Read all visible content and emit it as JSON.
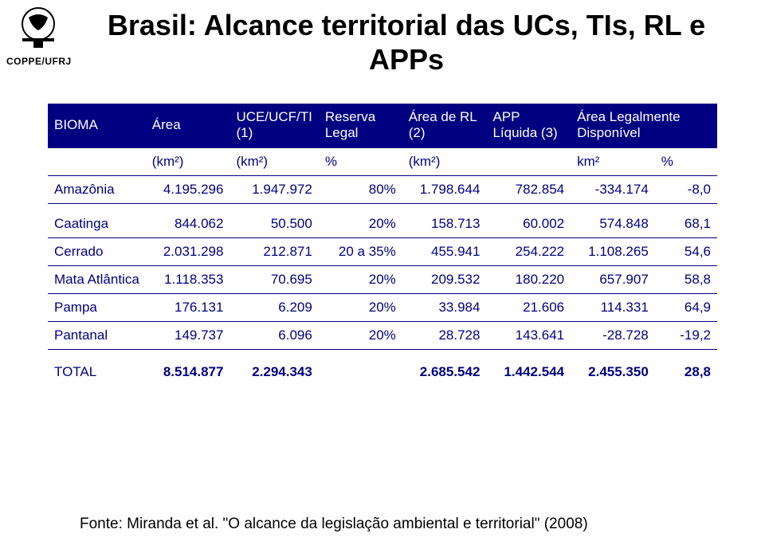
{
  "logo_label": "COPPE/UFRJ",
  "title": "Brasil: Alcance territorial das UCs, TIs, RL e APPs",
  "columns": {
    "bioma": "BIOMA",
    "area": "Área",
    "uce": "UCE/UCF/TI (1)",
    "rl": "Reserva Legal",
    "area_rl": "Área de RL (2)",
    "app": "APP   Líquida (3)",
    "disp": "Área Legalmente Disponível"
  },
  "units": {
    "u1": "(km²)",
    "u2": "(km²)",
    "u3": "%",
    "u4": "(km²)",
    "u5": "km²",
    "u6": "%"
  },
  "rows": [
    {
      "bioma": "Amazônia",
      "area": "4.195.296",
      "uce": "1.947.972",
      "rl": "80%",
      "area_rl": "1.798.644",
      "app": "782.854",
      "disp": "-334.174",
      "pct": "-8,0",
      "spacer_after": true
    },
    {
      "bioma": "Caatinga",
      "area": "844.062",
      "uce": "50.500",
      "rl": "20%",
      "area_rl": "158.713",
      "app": "60.002",
      "disp": "574.848",
      "pct": "68,1"
    },
    {
      "bioma": "Cerrado",
      "area": "2.031.298",
      "uce": "212.871",
      "rl": "20 a 35%",
      "area_rl": "455.941",
      "app": "254.222",
      "disp": "1.108.265",
      "pct": "54,6"
    },
    {
      "bioma": "Mata Atlântica",
      "area": "1.118.353",
      "uce": "70.695",
      "rl": "20%",
      "area_rl": "209.532",
      "app": "180.220",
      "disp": "657.907",
      "pct": "58,8"
    },
    {
      "bioma": "Pampa",
      "area": "176.131",
      "uce": "6.209",
      "rl": "20%",
      "area_rl": "33.984",
      "app": "21.606",
      "disp": "114.331",
      "pct": "64,9"
    },
    {
      "bioma": "Pantanal",
      "area": "149.737",
      "uce": "6.096",
      "rl": "20%",
      "area_rl": "28.728",
      "app": "143.641",
      "disp": "-28.728",
      "pct": "-19,2"
    }
  ],
  "total": {
    "label": "TOTAL",
    "area": "8.514.877",
    "uce": "2.294.343",
    "rl": "",
    "area_rl": "2.685.542",
    "app": "1.442.544",
    "disp": "2.455.350",
    "pct": "28,8"
  },
  "source": "Fonte: Miranda et al. \"O alcance da legislação ambiental e territorial\" (2008)",
  "style": {
    "header_bg": "#000080",
    "header_fg": "#ffffff",
    "body_fg": "#000080",
    "page_bg": "#ffffff",
    "title_fontsize": 36,
    "body_fontsize": 17,
    "source_fontsize": 19
  }
}
